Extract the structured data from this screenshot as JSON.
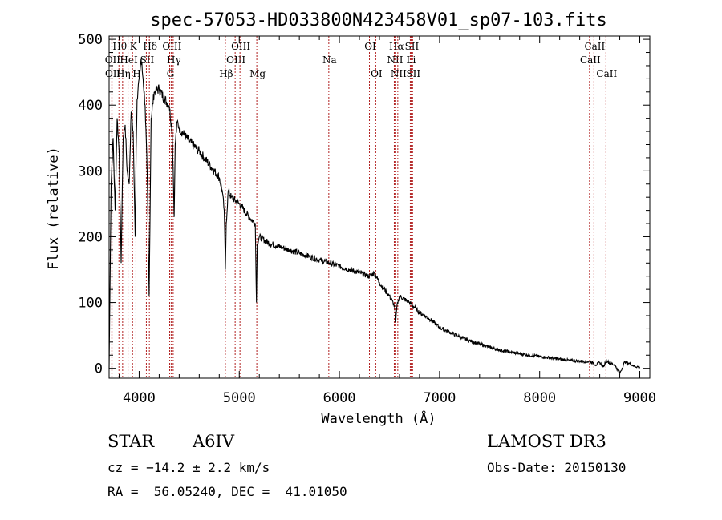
{
  "chart_data": {
    "type": "line",
    "title": "spec-57053-HD033800N423458V01_sp07-103.fits",
    "xlabel": "Wavelength (Å)",
    "ylabel": "Flux (relative)",
    "xlim": [
      3700,
      9100
    ],
    "ylim": [
      -15,
      505
    ],
    "xticks": [
      4000,
      5000,
      6000,
      7000,
      8000,
      9000
    ],
    "yticks": [
      0,
      100,
      200,
      300,
      400,
      500
    ],
    "grid": false,
    "legend": "none",
    "series": [
      {
        "name": "spectrum",
        "x": [
          3700,
          3720,
          3740,
          3760,
          3780,
          3800,
          3820,
          3840,
          3860,
          3880,
          3900,
          3920,
          3940,
          3960,
          3970,
          3980,
          4000,
          4020,
          4040,
          4060,
          4080,
          4100,
          4120,
          4150,
          4200,
          4250,
          4300,
          4330,
          4340,
          4350,
          4360,
          4380,
          4400,
          4450,
          4500,
          4600,
          4700,
          4800,
          4830,
          4850,
          4861,
          4870,
          4890,
          4920,
          5000,
          5100,
          5160,
          5172,
          5180,
          5200,
          5300,
          5400,
          5500,
          5600,
          5700,
          5800,
          5900,
          6000,
          6100,
          6200,
          6300,
          6350,
          6400,
          6500,
          6550,
          6563,
          6575,
          6600,
          6700,
          6800,
          6900,
          7000,
          7100,
          7200,
          7300,
          7400,
          7500,
          7600,
          7700,
          7800,
          7900,
          8000,
          8100,
          8200,
          8300,
          8400,
          8500,
          8540,
          8560,
          8600,
          8640,
          8662,
          8680,
          8700,
          8750,
          8800,
          8850,
          8900,
          8950,
          9000
        ],
        "values": [
          0,
          280,
          350,
          240,
          380,
          330,
          160,
          350,
          370,
          300,
          280,
          390,
          360,
          200,
          330,
          410,
          440,
          470,
          440,
          400,
          300,
          110,
          380,
          420,
          425,
          410,
          400,
          360,
          300,
          230,
          340,
          375,
          365,
          355,
          345,
          330,
          310,
          290,
          270,
          240,
          150,
          220,
          270,
          260,
          250,
          230,
          220,
          100,
          190,
          200,
          190,
          185,
          180,
          175,
          170,
          165,
          160,
          155,
          150,
          145,
          140,
          145,
          130,
          110,
          95,
          70,
          95,
          110,
          100,
          85,
          75,
          62,
          55,
          48,
          42,
          37,
          32,
          28,
          25,
          22,
          20,
          18,
          16,
          14,
          12,
          11,
          10,
          8,
          5,
          9,
          2,
          12,
          10,
          8,
          5,
          -8,
          10,
          7,
          3,
          2
        ]
      }
    ],
    "line_markers": [
      {
        "label": "Hθ",
        "wavelength": 3798,
        "row": 0
      },
      {
        "label": "OII",
        "wavelength": 3727,
        "row": 1
      },
      {
        "label": "OII",
        "wavelength": 3729,
        "row": 2
      },
      {
        "label": "Hη",
        "wavelength": 3835,
        "row": 2
      },
      {
        "label": "HeI",
        "wavelength": 3889,
        "row": 1
      },
      {
        "label": "K",
        "wavelength": 3934,
        "row": 0
      },
      {
        "label": "H",
        "wavelength": 3968,
        "row": 2
      },
      {
        "label": "SII",
        "wavelength": 4072,
        "row": 1
      },
      {
        "label": "Hδ",
        "wavelength": 4102,
        "row": 0
      },
      {
        "label": "OIII",
        "wavelength": 4320,
        "row": 0
      },
      {
        "label": "Hγ",
        "wavelength": 4340,
        "row": 1
      },
      {
        "label": "G",
        "wavelength": 4305,
        "row": 2
      },
      {
        "label": "Hβ",
        "wavelength": 4861,
        "row": 2
      },
      {
        "label": "OIII",
        "wavelength": 4959,
        "row": 1
      },
      {
        "label": "OIII",
        "wavelength": 5007,
        "row": 0
      },
      {
        "label": "Mg",
        "wavelength": 5175,
        "row": 2
      },
      {
        "label": "Na",
        "wavelength": 5894,
        "row": 1
      },
      {
        "label": "OI",
        "wavelength": 6300,
        "row": 0
      },
      {
        "label": "OI",
        "wavelength": 6363,
        "row": 2
      },
      {
        "label": "Hα",
        "wavelength": 6563,
        "row": 0
      },
      {
        "label": "NII",
        "wavelength": 6548,
        "row": 1
      },
      {
        "label": "NII",
        "wavelength": 6583,
        "row": 2
      },
      {
        "label": "SII",
        "wavelength": 6716,
        "row": 0
      },
      {
        "label": "Li",
        "wavelength": 6708,
        "row": 1
      },
      {
        "label": "SII",
        "wavelength": 6731,
        "row": 2
      },
      {
        "label": "CaII",
        "wavelength": 8542,
        "row": 0
      },
      {
        "label": "CaII",
        "wavelength": 8498,
        "row": 1
      },
      {
        "label": "CaII",
        "wavelength": 8662,
        "row": 2
      }
    ]
  },
  "info": {
    "object_class": "STAR",
    "subclass": "A6IV",
    "survey": "LAMOST DR3",
    "cz": "cz = −14.2 ± 2.2 km/s",
    "obs_date": "Obs-Date: 20150130",
    "coords": "RA =  56.05240, DEC =  41.01050"
  }
}
